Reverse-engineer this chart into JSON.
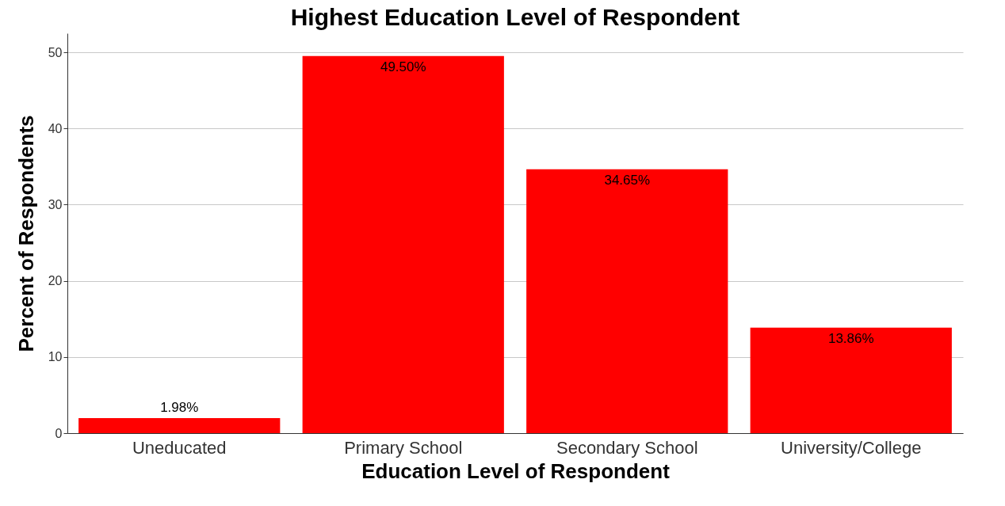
{
  "chart_data": {
    "type": "bar",
    "title": "Highest Education Level of Respondent",
    "xlabel": "Education Level of Respondent",
    "ylabel": "Percent of Respondents",
    "categories": [
      "Uneducated",
      "Primary School",
      "Secondary School",
      "University/College"
    ],
    "values": [
      1.98,
      49.5,
      34.65,
      13.86
    ],
    "color": "#ff0000",
    "value_labels": [
      "1.98%",
      "49.50%",
      "34.65%",
      "13.86%"
    ],
    "ylim": [
      0,
      52.5
    ],
    "yticks": [
      0,
      10,
      20,
      30,
      40,
      50
    ],
    "grid": "y"
  }
}
